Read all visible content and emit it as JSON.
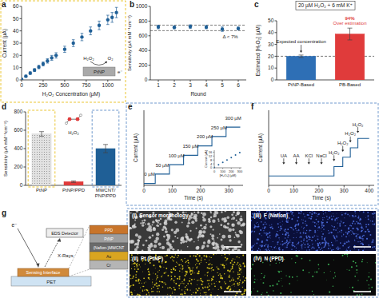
{
  "chart_data": [
    {
      "panel_label": "a",
      "type": "scatter",
      "x_label": "H₂O₂ Concentration (µM)",
      "y_label": "Current (µA)",
      "x": [
        0,
        50,
        100,
        150,
        200,
        250,
        300,
        350,
        400,
        500,
        600,
        700,
        800,
        900,
        1000,
        1050,
        1100
      ],
      "values": [
        0.5,
        3,
        5.5,
        8,
        10.5,
        13,
        15.5,
        18,
        20,
        25,
        30,
        35,
        40,
        44.5,
        49,
        51,
        55
      ],
      "errors": [
        0.5,
        0.8,
        1,
        1.2,
        1.4,
        1.6,
        1.8,
        2,
        2.2,
        2.5,
        2.8,
        3,
        3.2,
        3.5,
        3.8,
        4,
        4.2
      ],
      "color": "#1f5f96",
      "xlim": [
        0,
        1150
      ],
      "xticks": [
        0,
        250,
        500,
        750,
        1000
      ],
      "ylim": [
        0,
        60
      ],
      "yticks": [
        0,
        10,
        20,
        30,
        40,
        50,
        60
      ],
      "inset": {
        "electrode": "PtNP",
        "reactant": "H₂O₂",
        "product": "O₂",
        "electron": "e⁻"
      }
    },
    {
      "panel_label": "b",
      "type": "scatter",
      "x_label": "Round",
      "y_label": "Sensitivity (µA mM⁻¹cm⁻²)",
      "x": [
        1,
        2,
        3,
        4,
        5,
        6
      ],
      "values": [
        720,
        715,
        725,
        718,
        690,
        700
      ],
      "errors": [
        25,
        20,
        25,
        22,
        30,
        20
      ],
      "color": "#1f5f96",
      "xlim": [
        0.5,
        6.5
      ],
      "xticks": [
        1,
        2,
        3,
        4,
        5,
        6
      ],
      "ylim": [
        0,
        1000
      ],
      "yticks": [
        0,
        200,
        400,
        600,
        800,
        1000
      ],
      "hlines": [
        670,
        745
      ],
      "annotations": [
        {
          "text": "Δ < 7%",
          "x": 5.5,
          "y": 560
        }
      ]
    },
    {
      "panel_label": "c",
      "type": "bar",
      "title": "20 µM H₂O₂ + 6 mM K⁺",
      "y_label": "Estimated [H₂O₂] (µM)",
      "categories": [
        "PtNP-Based",
        "PB-Based"
      ],
      "values": [
        20,
        38.8
      ],
      "errors": [
        1,
        5
      ],
      "colors": [
        "#2e6fb5",
        "#e03b3b"
      ],
      "ylim": [
        0,
        50
      ],
      "yticks": [
        0,
        10,
        20,
        30,
        40,
        50
      ],
      "hlines": [
        20
      ],
      "annotations": [
        {
          "text": "Expected concentration",
          "x": 0,
          "y": 31
        },
        {
          "text": "94%",
          "x": 1,
          "y": 51
        },
        {
          "text": "Over estimation",
          "x": 1,
          "y": 46.5
        }
      ]
    },
    {
      "panel_label": "d",
      "type": "bar",
      "y_label": "Sensitivity (µA mM⁻¹cm⁻²)",
      "categories": [
        "PtNP",
        "PtNP/PPD",
        "MWCNT/PNP/PPD"
      ],
      "values": [
        560,
        40,
        400
      ],
      "errors": [
        25,
        8,
        45
      ],
      "colors": [
        "#d4d4d4",
        "#e03b3b",
        "#1f5f96"
      ],
      "ylim": [
        0,
        800
      ],
      "yticks": [
        0,
        200,
        400,
        600,
        800
      ],
      "annotations": [
        {
          "text": "H₂O₂",
          "x": 1,
          "y": 560
        }
      ]
    },
    {
      "panel_label": "e",
      "type": "line",
      "x_label": "Time (s)",
      "y_label": "Current (µA)",
      "x": [
        0,
        40,
        40,
        90,
        90,
        140,
        140,
        190,
        190,
        240,
        240,
        290,
        290,
        340
      ],
      "values": [
        0.5,
        0.5,
        3,
        3,
        5.5,
        5.5,
        8,
        8,
        10.5,
        10.5,
        13,
        13,
        15.5,
        15.5
      ],
      "color": "#1f5f96",
      "xlim": [
        0,
        350
      ],
      "xticks": [
        0,
        100,
        200,
        300
      ],
      "ylim": [
        0,
        20
      ],
      "tick_labels": "x",
      "annotations": [
        {
          "text": "0 µM",
          "x": 20,
          "y": 2.5
        },
        {
          "text": "50 µM",
          "x": 65,
          "y": 5
        },
        {
          "text": "100 µM",
          "x": 115,
          "y": 7.5
        },
        {
          "text": "150 µM",
          "x": 165,
          "y": 10
        },
        {
          "text": "200 µM",
          "x": 215,
          "y": 12.5
        },
        {
          "text": "250 µM",
          "x": 265,
          "y": 15
        },
        {
          "text": "300 µM",
          "x": 315,
          "y": 17.5
        }
      ]
    },
    {
      "panel_label": "f",
      "type": "line",
      "x_label": "Time (s)",
      "y_label": "Current (µA)",
      "x": [
        0,
        260,
        260,
        295,
        295,
        325,
        325,
        355,
        355,
        400
      ],
      "values": [
        1.5,
        1.5,
        3,
        3,
        4.5,
        4.5,
        6,
        6,
        7.5,
        7.5
      ],
      "color": "#1f5f96",
      "xlim": [
        0,
        420
      ],
      "xticks": [
        0,
        100,
        200,
        300,
        400
      ],
      "ylim": [
        0,
        12
      ],
      "tick_labels": "x",
      "annotations": [
        {
          "text": "UA",
          "x": 60,
          "y": 4.5
        },
        {
          "text": "AA",
          "x": 110,
          "y": 4.5
        },
        {
          "text": "KCl",
          "x": 160,
          "y": 4.5
        },
        {
          "text": "NaCl",
          "x": 210,
          "y": 4.5
        },
        {
          "text": "H₂O₂",
          "x": 260,
          "y": 5
        },
        {
          "text": "H₂O₂",
          "x": 295,
          "y": 6.5
        },
        {
          "text": "H₂O₂",
          "x": 325,
          "y": 8
        },
        {
          "text": "H₂O₂",
          "x": 355,
          "y": 9.5
        }
      ]
    },
    {
      "type": "scatter",
      "x_label": "[H₂O₂] (µM)",
      "y_label": "Current (µA)",
      "x": [
        0,
        50,
        100,
        150,
        200,
        250,
        300
      ],
      "values": [
        0.5,
        3,
        5.5,
        8,
        10.5,
        13,
        15.5
      ],
      "color": "#1f5f96",
      "xlim": [
        0,
        320
      ],
      "xticks": [
        0,
        100,
        200,
        300
      ],
      "ylim": [
        0,
        18
      ],
      "yticks": [
        0,
        4,
        8,
        12,
        16
      ]
    }
  ],
  "diagram": {
    "panel_label": "g",
    "electron_label": "e⁻",
    "beam_label": "X-Rays",
    "detector_label": "EDS Detector",
    "interface_label": "Sensing Interface",
    "substrate_label": "PET",
    "layers": [
      {
        "label": "PPD",
        "color": "#c8742a"
      },
      {
        "label": "PtNP",
        "color": "#9e9e9e"
      },
      {
        "label": "(Nafion-)MWCNT",
        "color": "#6b6b6b"
      },
      {
        "label": "Au",
        "color": "#d9a520"
      },
      {
        "label": "Cr",
        "color": "#b5b5b5"
      }
    ],
    "images": [
      {
        "numeral": "(I)",
        "label": "Sensor morphology",
        "color": "#d8d8d8"
      },
      {
        "numeral": "(II)",
        "label": "Pt (PtNP)",
        "color": "#e6d21e"
      },
      {
        "numeral": "(III)",
        "label": "F (Nafion)",
        "color": "#4f6fe0"
      },
      {
        "numeral": "(IV)",
        "label": "N (PPD)",
        "color": "#3fbf5a"
      }
    ]
  }
}
